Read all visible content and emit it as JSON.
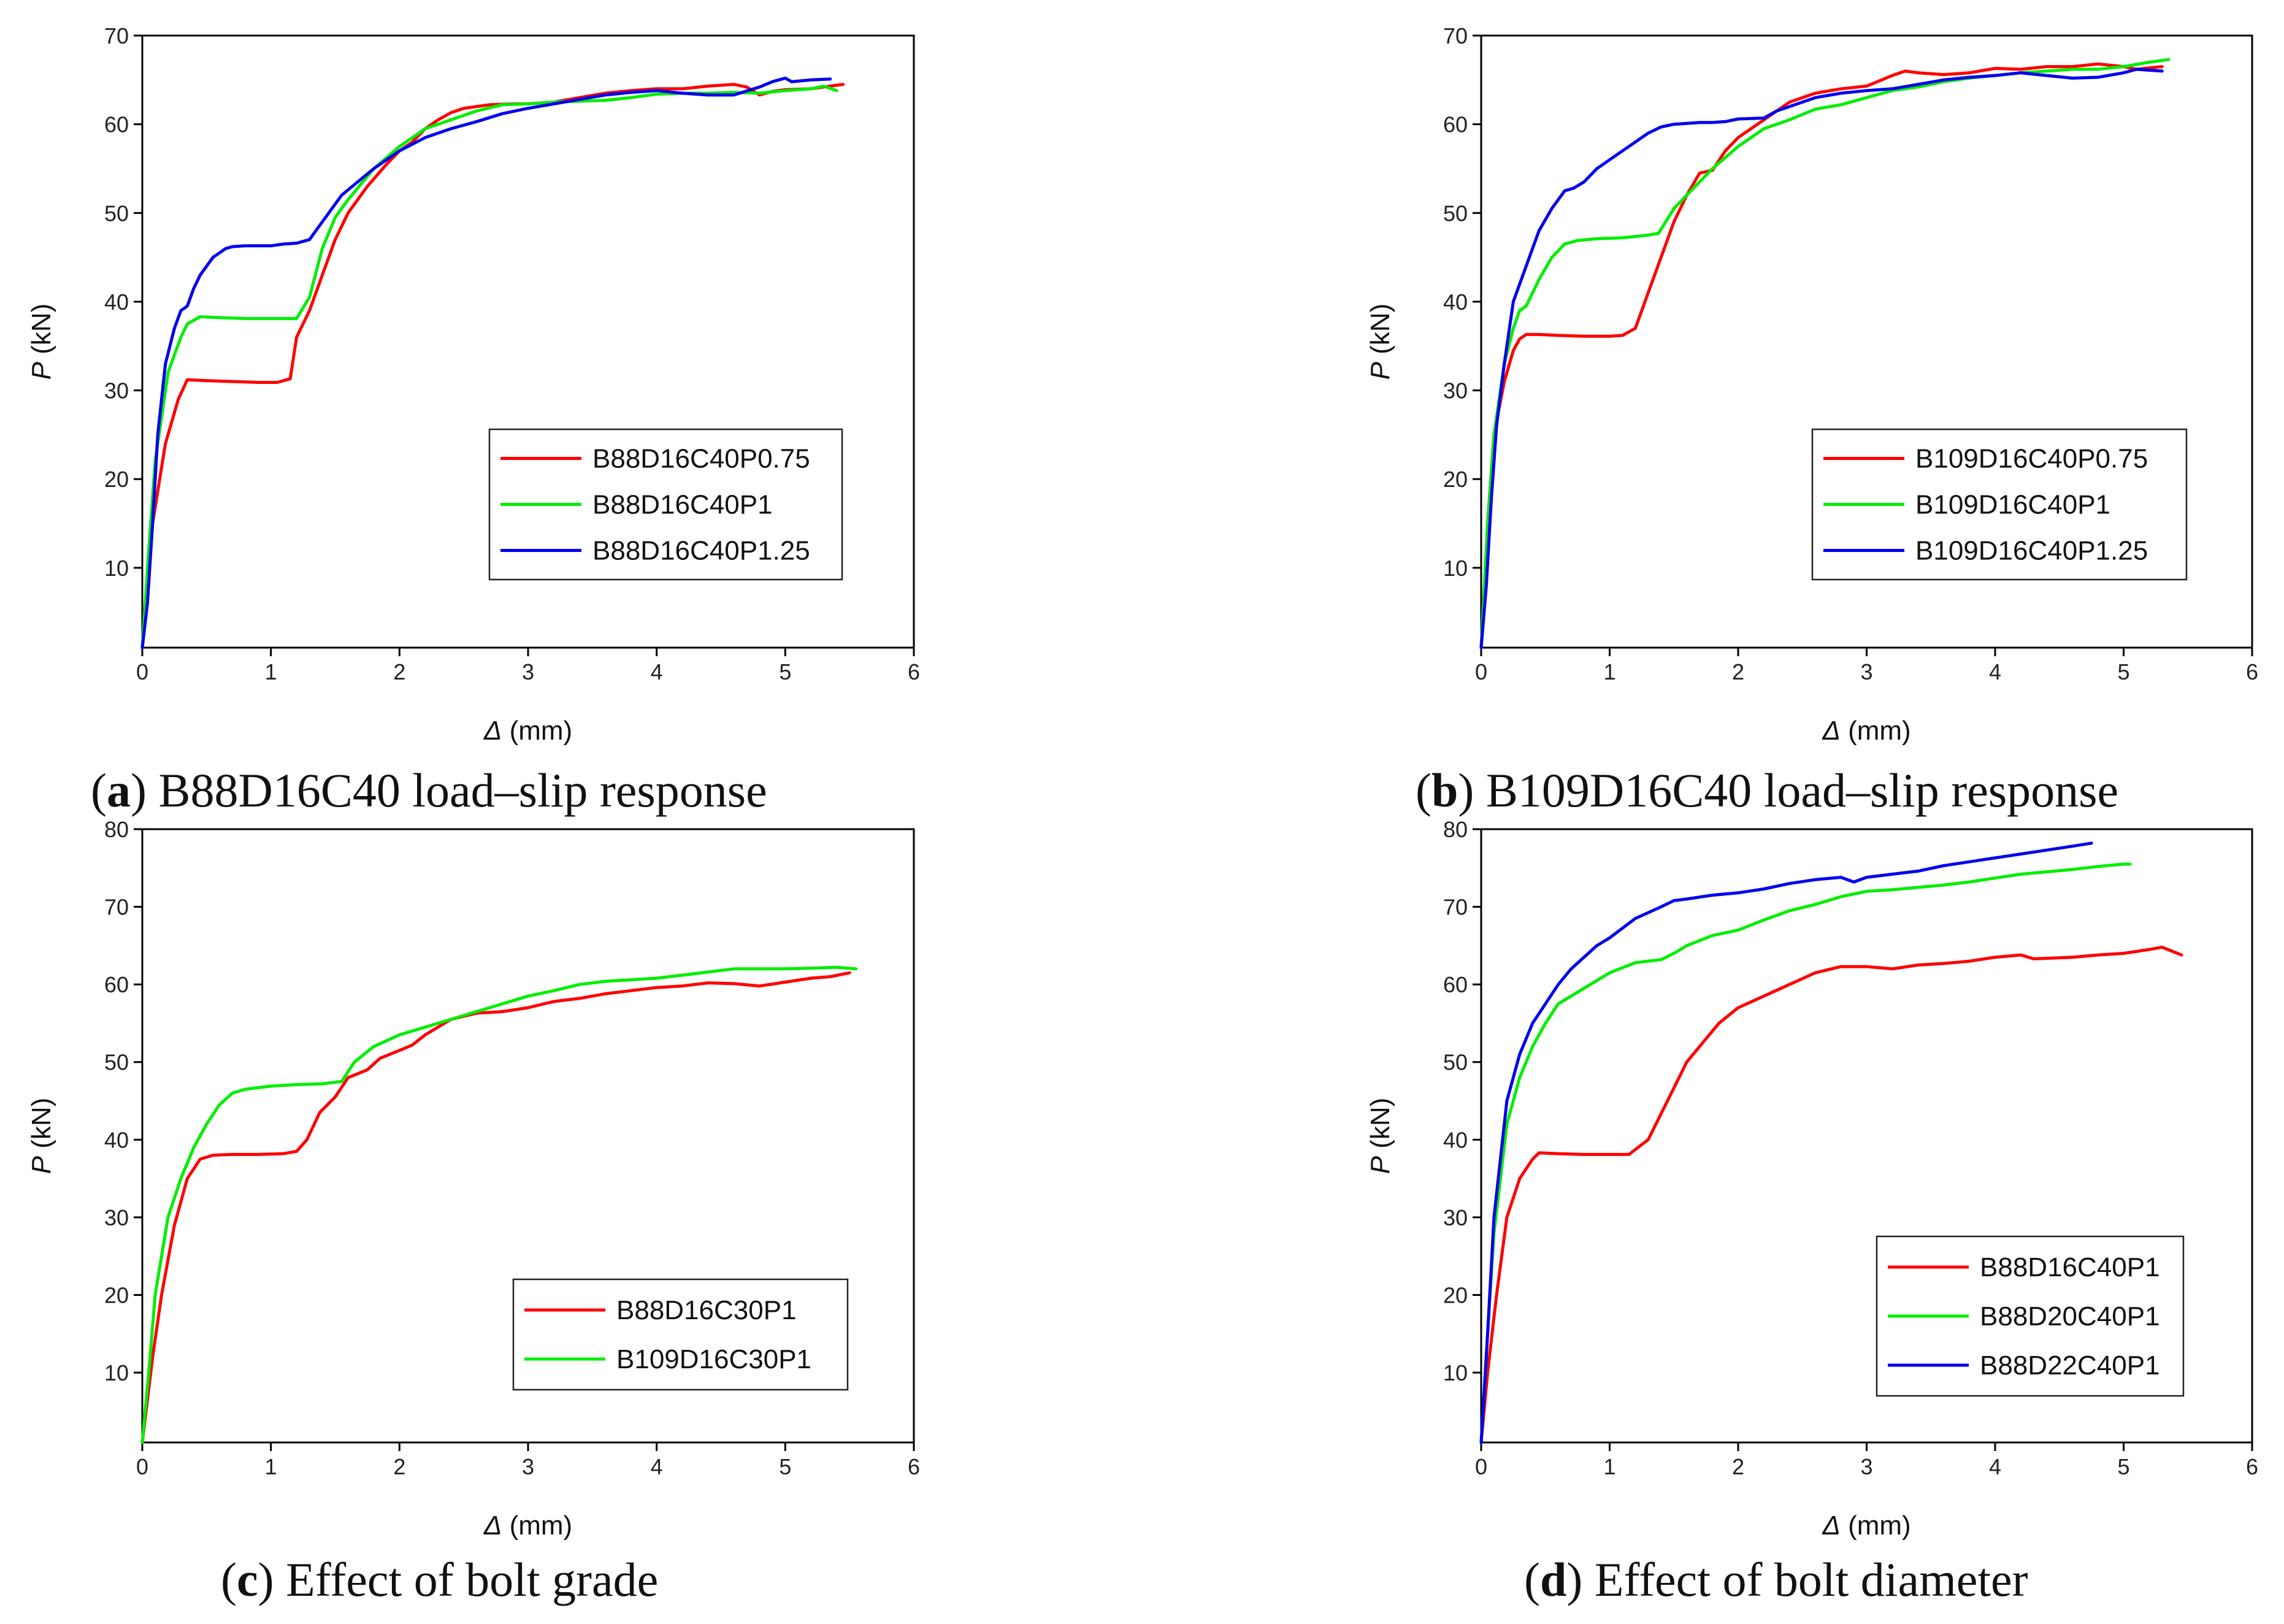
{
  "chart_data": [
    {
      "type": "line",
      "caption_letter": "a",
      "caption_text": "B88D16C40 load–slip response",
      "xlabel": "Δ",
      "xunit": " (mm)",
      "ylabel": "P",
      "yunit": " (kN)",
      "xlim": [
        0,
        6
      ],
      "ylim": [
        1,
        70
      ],
      "xticks": [
        0,
        1,
        2,
        3,
        4,
        5,
        6
      ],
      "yticks": [
        10,
        20,
        30,
        40,
        50,
        60,
        70
      ],
      "legend_position": "center-right",
      "series": [
        {
          "name": "B88D16C40P0.75",
          "color": "#ff0000",
          "x": [
            0,
            0.08,
            0.18,
            0.28,
            0.35,
            0.5,
            0.7,
            0.9,
            1.05,
            1.15,
            1.2,
            1.3,
            1.4,
            1.5,
            1.6,
            1.75,
            1.9,
            2.0,
            2.1,
            2.2,
            2.3,
            2.4,
            2.5,
            2.7,
            2.9,
            3.0,
            3.2,
            3.4,
            3.6,
            3.8,
            4.0,
            4.2,
            4.4,
            4.6,
            4.7,
            4.8,
            4.9,
            5.0,
            5.2,
            5.35,
            5.45
          ],
          "y": [
            1,
            15,
            24,
            29,
            31.2,
            31.1,
            31,
            30.9,
            30.9,
            31.3,
            36,
            39,
            43,
            47,
            50,
            53,
            55.5,
            57,
            58,
            59.5,
            60.5,
            61.3,
            61.8,
            62.2,
            62.3,
            62.3,
            62.5,
            63,
            63.5,
            63.8,
            64,
            64,
            64.3,
            64.5,
            64.2,
            63.3,
            63.7,
            63.9,
            64.0,
            64.3,
            64.5
          ]
        },
        {
          "name": "B88D16C40P1",
          "color": "#00ee00",
          "x": [
            0,
            0.05,
            0.1,
            0.2,
            0.3,
            0.35,
            0.45,
            0.6,
            0.8,
            1.0,
            1.2,
            1.3,
            1.4,
            1.5,
            1.6,
            1.8,
            2.0,
            2.2,
            2.4,
            2.6,
            2.8,
            3.0,
            3.2,
            3.4,
            3.6,
            3.8,
            4.0,
            4.2,
            4.4,
            4.6,
            4.8,
            5.0,
            5.2,
            5.3,
            5.4
          ],
          "y": [
            1,
            12,
            22,
            32,
            36,
            37.5,
            38.3,
            38.2,
            38.1,
            38.1,
            38.1,
            40.5,
            46,
            49.5,
            51.5,
            55,
            57.5,
            59.5,
            60.5,
            61.5,
            62.2,
            62.3,
            62.5,
            62.6,
            62.7,
            63,
            63.4,
            63.5,
            63.5,
            63.6,
            63.5,
            63.8,
            64,
            64.3,
            63.8
          ]
        },
        {
          "name": "B88D16C40P1.25",
          "color": "#0000ee",
          "x": [
            0,
            0.04,
            0.08,
            0.12,
            0.18,
            0.25,
            0.3,
            0.35,
            0.4,
            0.45,
            0.55,
            0.65,
            0.7,
            0.8,
            0.9,
            1.0,
            1.1,
            1.2,
            1.3,
            1.35,
            1.45,
            1.55,
            1.65,
            1.8,
            2.0,
            2.2,
            2.4,
            2.6,
            2.8,
            3.0,
            3.2,
            3.4,
            3.6,
            3.8,
            4.0,
            4.2,
            4.4,
            4.6,
            4.8,
            4.9,
            5.0,
            5.05,
            5.2,
            5.35
          ],
          "y": [
            1,
            6,
            15,
            25,
            33,
            37,
            39,
            39.5,
            41.5,
            43,
            45,
            46,
            46.2,
            46.3,
            46.3,
            46.3,
            46.5,
            46.6,
            47,
            48,
            50,
            52,
            53.2,
            55,
            57,
            58.5,
            59.5,
            60.3,
            61.2,
            61.8,
            62.3,
            62.8,
            63.3,
            63.6,
            63.8,
            63.5,
            63.3,
            63.3,
            64.2,
            64.8,
            65.2,
            64.8,
            65.0,
            65.1
          ]
        }
      ]
    },
    {
      "type": "line",
      "caption_letter": "b",
      "caption_text": "B109D16C40 load–slip response",
      "xlabel": "Δ",
      "xunit": " (mm)",
      "ylabel": "P",
      "yunit": " (kN)",
      "xlim": [
        0,
        6
      ],
      "ylim": [
        1,
        70
      ],
      "xticks": [
        0,
        1,
        2,
        3,
        4,
        5,
        6
      ],
      "yticks": [
        10,
        20,
        30,
        40,
        50,
        60,
        70
      ],
      "legend_position": "center-right",
      "series": [
        {
          "name": "B109D16C40P0.75",
          "color": "#ff0000",
          "x": [
            0,
            0.05,
            0.1,
            0.18,
            0.25,
            0.3,
            0.35,
            0.45,
            0.6,
            0.8,
            1.0,
            1.1,
            1.2,
            1.3,
            1.4,
            1.5,
            1.6,
            1.7,
            1.8,
            1.9,
            2.0,
            2.2,
            2.4,
            2.6,
            2.8,
            3.0,
            3.2,
            3.3,
            3.4,
            3.6,
            3.8,
            4.0,
            4.2,
            4.4,
            4.6,
            4.8,
            5.0,
            5.1,
            5.3
          ],
          "y": [
            1,
            15,
            25,
            31,
            34.5,
            35.8,
            36.3,
            36.3,
            36.2,
            36.1,
            36.1,
            36.2,
            37,
            41,
            45,
            49,
            52,
            54.5,
            54.8,
            57,
            58.5,
            60.5,
            62.5,
            63.5,
            64,
            64.3,
            65.5,
            66,
            65.8,
            65.6,
            65.8,
            66.3,
            66.2,
            66.5,
            66.5,
            66.8,
            66.5,
            66.2,
            66.5
          ]
        },
        {
          "name": "B109D16C40P1",
          "color": "#00ee00",
          "x": [
            0,
            0.05,
            0.1,
            0.18,
            0.25,
            0.3,
            0.35,
            0.45,
            0.55,
            0.65,
            0.75,
            0.9,
            1.1,
            1.3,
            1.38,
            1.5,
            1.6,
            1.8,
            2.0,
            2.2,
            2.4,
            2.6,
            2.8,
            3.0,
            3.2,
            3.4,
            3.6,
            3.8,
            4.0,
            4.2,
            4.4,
            4.6,
            4.8,
            5.0,
            5.2,
            5.35
          ],
          "y": [
            1,
            15,
            25,
            33,
            37,
            39,
            39.5,
            42.5,
            45,
            46.5,
            46.9,
            47.1,
            47.2,
            47.5,
            47.7,
            50.5,
            52,
            55,
            57.5,
            59.5,
            60.5,
            61.7,
            62.2,
            63,
            63.8,
            64.2,
            64.8,
            65.2,
            65.5,
            65.8,
            66,
            66.2,
            66.2,
            66.5,
            67,
            67.3
          ]
        },
        {
          "name": "B109D16C40P1.25",
          "color": "#0000ee",
          "x": [
            0,
            0.04,
            0.08,
            0.12,
            0.18,
            0.25,
            0.35,
            0.45,
            0.55,
            0.65,
            0.72,
            0.8,
            0.9,
            1.0,
            1.1,
            1.2,
            1.3,
            1.4,
            1.5,
            1.6,
            1.7,
            1.8,
            1.9,
            2.0,
            2.2,
            2.3,
            2.4,
            2.6,
            2.8,
            3.0,
            3.2,
            3.4,
            3.6,
            3.8,
            4.0,
            4.2,
            4.4,
            4.6,
            4.8,
            5.0,
            5.1,
            5.3
          ],
          "y": [
            1,
            8,
            18,
            26,
            33,
            40,
            44,
            48,
            50.5,
            52.5,
            52.8,
            53.5,
            55,
            56,
            57,
            58,
            59,
            59.7,
            60,
            60.1,
            60.2,
            60.2,
            60.3,
            60.6,
            60.7,
            61.5,
            62,
            63,
            63.5,
            63.8,
            64,
            64.5,
            65,
            65.3,
            65.5,
            65.8,
            65.5,
            65.2,
            65.3,
            65.8,
            66.2,
            66
          ]
        }
      ]
    },
    {
      "type": "line",
      "caption_letter": "c",
      "caption_text": "Effect of bolt grade",
      "xlabel": "Δ",
      "xunit": " (mm)",
      "ylabel": "P",
      "yunit": " (kN)",
      "xlim": [
        0,
        6
      ],
      "ylim": [
        1,
        80
      ],
      "xticks": [
        0,
        1,
        2,
        3,
        4,
        5,
        6
      ],
      "yticks": [
        10,
        20,
        30,
        40,
        50,
        60,
        70,
        80
      ],
      "legend_position": "center-right",
      "series": [
        {
          "name": "B88D16C30P1",
          "color": "#ff0000",
          "x": [
            0,
            0.08,
            0.15,
            0.25,
            0.35,
            0.45,
            0.55,
            0.7,
            0.9,
            1.1,
            1.2,
            1.28,
            1.38,
            1.5,
            1.6,
            1.75,
            1.85,
            2.0,
            2.1,
            2.2,
            2.4,
            2.6,
            2.8,
            3.0,
            3.2,
            3.4,
            3.6,
            3.8,
            4.0,
            4.2,
            4.4,
            4.6,
            4.8,
            5.0,
            5.2,
            5.35,
            5.5
          ],
          "y": [
            1,
            12,
            20,
            29,
            35,
            37.5,
            38,
            38.1,
            38.1,
            38.2,
            38.5,
            40,
            43.5,
            45.5,
            48,
            49,
            50.5,
            51.5,
            52.2,
            53.5,
            55.5,
            56.3,
            56.5,
            57,
            57.8,
            58.2,
            58.8,
            59.2,
            59.6,
            59.8,
            60.2,
            60.1,
            59.8,
            60.3,
            60.8,
            61,
            61.5
          ]
        },
        {
          "name": "B109D16C30P1",
          "color": "#00ee00",
          "x": [
            0,
            0.05,
            0.1,
            0.2,
            0.3,
            0.4,
            0.5,
            0.6,
            0.7,
            0.8,
            0.9,
            1.0,
            1.2,
            1.4,
            1.55,
            1.65,
            1.8,
            2.0,
            2.2,
            2.4,
            2.6,
            2.8,
            3.0,
            3.2,
            3.4,
            3.6,
            3.8,
            4.0,
            4.2,
            4.4,
            4.6,
            4.8,
            5.0,
            5.2,
            5.4,
            5.55
          ],
          "y": [
            1,
            10,
            20,
            30,
            35,
            39,
            42,
            44.5,
            46,
            46.5,
            46.7,
            46.9,
            47.1,
            47.2,
            47.5,
            50,
            52,
            53.5,
            54.5,
            55.5,
            56.5,
            57.5,
            58.5,
            59.2,
            60,
            60.4,
            60.6,
            60.8,
            61.2,
            61.6,
            62,
            62,
            62,
            62.1,
            62.2,
            62
          ]
        }
      ]
    },
    {
      "type": "line",
      "caption_letter": "d",
      "caption_text": "Effect of bolt diameter",
      "xlabel": "Δ",
      "xunit": " (mm)",
      "ylabel": "P",
      "yunit": " (kN)",
      "xlim": [
        0,
        6
      ],
      "ylim": [
        1,
        80
      ],
      "xticks": [
        0,
        1,
        2,
        3,
        4,
        5,
        6
      ],
      "yticks": [
        10,
        20,
        30,
        40,
        50,
        60,
        70,
        80
      ],
      "legend_position": "center-right",
      "series": [
        {
          "name": "B88D16C40P1",
          "color": "#ff0000",
          "x": [
            0,
            0.05,
            0.12,
            0.2,
            0.3,
            0.4,
            0.45,
            0.6,
            0.8,
            1.0,
            1.15,
            1.3,
            1.45,
            1.6,
            1.75,
            1.85,
            2.0,
            2.2,
            2.4,
            2.6,
            2.8,
            3.0,
            3.2,
            3.4,
            3.6,
            3.8,
            4.0,
            4.2,
            4.3,
            4.6,
            4.8,
            5.0,
            5.2,
            5.3,
            5.45
          ],
          "y": [
            1,
            10,
            20,
            30,
            35,
            37.5,
            38.3,
            38.2,
            38.1,
            38.1,
            38.1,
            40,
            45,
            50,
            53,
            55,
            57,
            58.5,
            60,
            61.5,
            62.3,
            62.3,
            62,
            62.5,
            62.7,
            63,
            63.5,
            63.8,
            63.3,
            63.5,
            63.8,
            64,
            64.5,
            64.8,
            63.8
          ]
        },
        {
          "name": "B88D20C40P1",
          "color": "#00ee00",
          "x": [
            0,
            0.05,
            0.1,
            0.2,
            0.3,
            0.4,
            0.5,
            0.6,
            0.7,
            0.8,
            0.9,
            1.0,
            1.2,
            1.4,
            1.5,
            1.6,
            1.8,
            2.0,
            2.2,
            2.4,
            2.6,
            2.8,
            3.0,
            3.2,
            3.4,
            3.6,
            3.8,
            4.0,
            4.2,
            4.4,
            4.6,
            4.8,
            5.0,
            5.05
          ],
          "y": [
            1,
            15,
            28,
            42,
            48,
            52,
            55,
            57.5,
            58.5,
            59.5,
            60.5,
            61.5,
            62.8,
            63.2,
            64,
            65,
            66.3,
            67,
            68.3,
            69.5,
            70.3,
            71.3,
            72,
            72.2,
            72.5,
            72.8,
            73.2,
            73.7,
            74.2,
            74.5,
            74.8,
            75.2,
            75.5,
            75.5
          ]
        },
        {
          "name": "B88D22C40P1",
          "color": "#0000ee",
          "x": [
            0,
            0.05,
            0.1,
            0.2,
            0.3,
            0.4,
            0.5,
            0.6,
            0.7,
            0.8,
            0.9,
            1.0,
            1.2,
            1.4,
            1.5,
            1.6,
            1.8,
            2.0,
            2.2,
            2.4,
            2.6,
            2.8,
            2.9,
            3.0,
            3.2,
            3.4,
            3.6,
            3.8,
            4.0,
            4.2,
            4.4,
            4.6,
            4.75
          ],
          "y": [
            1,
            15,
            30,
            45,
            51,
            55,
            57.5,
            60,
            62,
            63.5,
            65,
            66,
            68.5,
            70,
            70.8,
            71,
            71.5,
            71.8,
            72.3,
            73,
            73.5,
            73.8,
            73.2,
            73.8,
            74.2,
            74.6,
            75.3,
            75.8,
            76.3,
            76.8,
            77.3,
            77.8,
            78.2
          ]
        }
      ]
    }
  ]
}
